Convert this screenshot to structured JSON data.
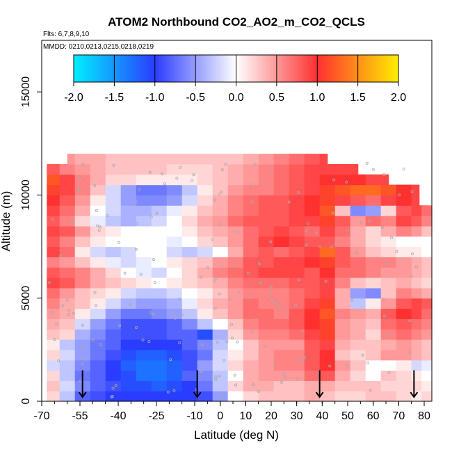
{
  "chart_data": {
    "type": "heatmap",
    "title": "ATOM2 Northbound CO2_AO2_m_CO2_QCLS",
    "flights_label": "Flts: 6,7,8,9,10",
    "dates_label": "MMDD: 0210,0213,0215,0218,0219",
    "xlabel": "Latitude (deg N)",
    "ylabel": "Altitude (m)",
    "xlim": [
      -70,
      83
    ],
    "ylim": [
      0,
      17500
    ],
    "x_ticks": [
      -70,
      -55,
      -40,
      -25,
      -10,
      0,
      10,
      20,
      30,
      40,
      50,
      60,
      70,
      80
    ],
    "y_ticks": [
      0,
      5000,
      10000,
      15000
    ],
    "colorbar": {
      "ticks": [
        "-2.0",
        "-1.5",
        "-1.0",
        "-0.5",
        "0.0",
        "0.5",
        "1.0",
        "1.5",
        "2.0"
      ],
      "range": [
        -2.0,
        2.0
      ],
      "colors": {
        "low": "#00f0ff",
        "mid_low": "#2a3cff",
        "zero": "#ffffff",
        "mid_high": "#ff3030",
        "high": "#ffee00"
      }
    },
    "arrows_latitude": [
      -54,
      -9,
      39,
      76
    ],
    "altitude_levels": [
      250,
      750,
      1250,
      1750,
      2250,
      2750,
      3250,
      3750,
      4250,
      4750,
      5250,
      5750,
      6250,
      6750,
      7250,
      7750,
      8250,
      8750,
      9250,
      9750,
      10250,
      10750,
      11250,
      11750
    ],
    "latitude_bins": [
      -66,
      -60,
      -54,
      -48,
      -42,
      -36,
      -30,
      -24,
      -18,
      -12,
      -6,
      0,
      6,
      12,
      18,
      24,
      30,
      36,
      42,
      48,
      54,
      60,
      66,
      72,
      78,
      82
    ],
    "values": [
      [
        0.2,
        -0.3,
        -0.8,
        -0.9,
        -1.0,
        -1.0,
        -1.0,
        -1.0,
        -1.0,
        -1.0,
        -0.9,
        -0.5,
        0.0,
        0.2,
        0.3,
        0.3,
        0.3,
        0.4,
        0.3,
        0.2,
        0.2,
        0.3,
        0.3,
        0.2,
        0.1,
        0.2
      ],
      [
        0.3,
        -0.2,
        -0.6,
        -0.8,
        -0.9,
        -1.1,
        -1.1,
        -1.2,
        -1.1,
        -1.0,
        -0.7,
        -0.3,
        0.2,
        0.4,
        0.4,
        0.3,
        0.3,
        0.4,
        0.4,
        0.3,
        0.3,
        0.3,
        0.2,
        0.2,
        0.2,
        0.1
      ],
      [
        0.2,
        -0.3,
        -0.7,
        -0.8,
        -1.0,
        -1.1,
        -1.3,
        -1.3,
        -1.2,
        -0.8,
        -0.6,
        -0.3,
        0.0,
        0.4,
        0.5,
        0.5,
        0.5,
        0.7,
        0.8,
        0.4,
        0.2,
        0.0,
        0.3,
        0.2,
        0.1,
        0.0
      ],
      [
        -0.2,
        -0.3,
        -0.6,
        -0.8,
        -1.0,
        -1.2,
        -1.3,
        -1.3,
        -1.2,
        -0.9,
        -0.5,
        -0.2,
        0.2,
        0.4,
        0.5,
        0.6,
        0.6,
        0.8,
        1.0,
        0.5,
        0.3,
        0.0,
        0.0,
        0.1,
        -0.2,
        -0.1
      ],
      [
        0.2,
        -0.2,
        -0.5,
        -0.7,
        -0.9,
        -1.1,
        -1.2,
        -1.2,
        -1.1,
        -0.9,
        -0.7,
        -0.2,
        0.1,
        0.3,
        0.5,
        0.6,
        0.6,
        0.8,
        1.0,
        0.3,
        0.2,
        0.3,
        0.5,
        0.5,
        0.4,
        0.3
      ],
      [
        0.1,
        -0.3,
        -0.5,
        -0.7,
        -0.8,
        -1.0,
        -1.0,
        -1.0,
        -1.0,
        -0.8,
        -0.6,
        -0.3,
        0.0,
        0.3,
        0.5,
        0.5,
        0.5,
        0.8,
        0.9,
        0.4,
        0.3,
        0.3,
        0.4,
        0.5,
        0.4,
        0.3
      ],
      [
        0.3,
        0.2,
        -0.4,
        -0.6,
        -0.8,
        -0.9,
        -0.9,
        -0.9,
        -0.8,
        -0.8,
        -1.1,
        -0.4,
        0.2,
        0.5,
        0.6,
        0.6,
        0.7,
        0.9,
        1.1,
        0.5,
        0.4,
        0.2,
        0.6,
        0.7,
        0.6,
        0.5
      ],
      [
        0.4,
        0.3,
        -0.2,
        -0.5,
        -0.7,
        -0.9,
        -0.9,
        -0.9,
        -0.8,
        -0.6,
        -0.3,
        0.0,
        0.3,
        0.6,
        0.7,
        0.7,
        0.8,
        1.0,
        1.1,
        0.5,
        0.4,
        0.3,
        0.7,
        0.8,
        0.7,
        0.6
      ],
      [
        0.5,
        0.4,
        0.1,
        -0.2,
        -0.5,
        -0.7,
        -0.7,
        -0.6,
        -0.5,
        -0.3,
        0.1,
        0.3,
        0.5,
        0.7,
        0.7,
        0.6,
        0.8,
        1.0,
        1.2,
        0.6,
        0.5,
        0.4,
        0.8,
        1.0,
        0.9,
        0.7
      ],
      [
        0.6,
        0.4,
        0.3,
        0.1,
        -0.2,
        -0.4,
        -0.5,
        -0.5,
        -0.4,
        -0.1,
        0.2,
        0.4,
        0.5,
        0.7,
        0.6,
        0.6,
        0.7,
        0.9,
        1.1,
        0.4,
        -0.3,
        0.1,
        0.5,
        0.8,
        0.9,
        0.8
      ],
      [
        0.7,
        0.5,
        0.3,
        0.2,
        0.1,
        -0.2,
        -0.3,
        -0.3,
        -0.2,
        0.0,
        0.1,
        0.3,
        0.5,
        0.6,
        0.6,
        0.6,
        0.7,
        0.8,
        0.9,
        0.4,
        -0.5,
        -0.6,
        0.3,
        0.6,
        0.5,
        0.4
      ],
      [
        0.9,
        0.8,
        0.6,
        0.4,
        0.3,
        0.2,
        0.1,
        0.0,
        0.1,
        0.2,
        0.3,
        0.4,
        0.6,
        0.7,
        0.7,
        0.7,
        0.8,
        0.8,
        0.9,
        0.6,
        0.3,
        0.2,
        0.3,
        0.4,
        0.3,
        0.2
      ],
      [
        0.8,
        0.7,
        0.6,
        0.4,
        0.2,
        0.0,
        -0.1,
        -0.2,
        0.0,
        0.2,
        0.4,
        0.6,
        0.7,
        0.8,
        0.9,
        0.9,
        0.9,
        0.8,
        1.0,
        0.7,
        0.7,
        0.6,
        0.5,
        0.5,
        0.4,
        0.3
      ],
      [
        0.6,
        0.5,
        0.3,
        0.1,
        -0.1,
        -0.2,
        -0.1,
        0.0,
        0.1,
        0.2,
        0.3,
        0.5,
        0.6,
        0.8,
        0.8,
        0.9,
        0.9,
        1.0,
        1.1,
        0.8,
        0.7,
        0.6,
        0.6,
        0.5,
        0.4,
        0.3
      ],
      [
        0.9,
        0.7,
        0.1,
        -0.2,
        -0.3,
        -0.2,
        0.0,
        0.0,
        -0.2,
        -0.3,
        -0.2,
        0.0,
        0.4,
        0.7,
        0.8,
        0.7,
        0.8,
        0.9,
        1.3,
        0.8,
        0.5,
        0.3,
        0.2,
        0.1,
        0.1,
        0.0
      ],
      [
        0.8,
        0.6,
        0.3,
        0.1,
        0.0,
        0.0,
        0.0,
        0.0,
        -0.1,
        0.0,
        0.2,
        0.3,
        0.5,
        0.7,
        0.9,
        1.0,
        0.9,
        0.8,
        0.8,
        0.6,
        0.4,
        0.2,
        0.1,
        0.0,
        0.0,
        0.0
      ],
      [
        0.9,
        0.8,
        0.5,
        0.2,
        0.1,
        0.0,
        0.0,
        0.0,
        0.0,
        0.1,
        0.3,
        0.4,
        0.5,
        0.7,
        0.8,
        0.9,
        0.8,
        0.7,
        0.9,
        0.7,
        0.4,
        0.2,
        0.4,
        0.6,
        0.5,
        0.3
      ],
      [
        0.8,
        0.6,
        0.2,
        -0.1,
        -0.3,
        -0.4,
        -0.3,
        -0.2,
        0.0,
        0.2,
        0.4,
        0.5,
        0.7,
        0.8,
        0.8,
        0.8,
        0.9,
        0.9,
        1.1,
        0.8,
        0.5,
        0.7,
        0.6,
        0.9,
        0.8,
        0.6
      ],
      [
        0.9,
        0.7,
        0.4,
        0.0,
        -0.2,
        -0.4,
        -0.4,
        -0.3,
        -0.1,
        0.1,
        0.3,
        0.4,
        0.6,
        0.7,
        0.8,
        0.8,
        0.9,
        1.0,
        1.2,
        0.3,
        -0.6,
        -0.5,
        0.2,
        0.8,
        0.9,
        0.7
      ],
      [
        1.0,
        0.8,
        0.5,
        0.1,
        -0.2,
        -0.5,
        -0.6,
        -0.6,
        -0.5,
        -0.2,
        0.2,
        0.4,
        0.6,
        0.7,
        0.8,
        0.8,
        0.9,
        1.0,
        1.1,
        0.9,
        0.8,
        0.7,
        0.9,
        1.0,
        0.9,
        0.8
      ],
      [
        1.1,
        0.9,
        0.6,
        0.3,
        -0.2,
        -0.5,
        -0.7,
        -0.7,
        -0.6,
        -0.3,
        0.1,
        0.3,
        0.5,
        0.6,
        0.6,
        0.7,
        0.8,
        0.9,
        1.1,
        1.2,
        1.3,
        1.3,
        1.2,
        1.0,
        0.9,
        0.9
      ],
      [
        1.2,
        0.9,
        0.6,
        0.4,
        0.2,
        0.2,
        0.1,
        0.1,
        0.1,
        0.1,
        0.2,
        0.3,
        0.4,
        0.5,
        0.6,
        0.7,
        0.8,
        0.9,
        1.0,
        1.0,
        1.0,
        0.9,
        0.9,
        0.9,
        0.8,
        0.8
      ],
      [
        0.8,
        0.6,
        0.5,
        0.4,
        0.3,
        0.3,
        0.3,
        0.3,
        0.2,
        0.2,
        0.2,
        0.3,
        0.4,
        0.5,
        0.6,
        0.7,
        0.8,
        0.9,
        0.9,
        0.9,
        0.9,
        0.9,
        0.8,
        0.8,
        0.8,
        0.8
      ],
      [
        0.5,
        0.5,
        0.4,
        0.4,
        0.3,
        0.3,
        0.3,
        0.3,
        0.3,
        0.3,
        0.3,
        0.3,
        0.3,
        0.4,
        0.5,
        0.6,
        0.7,
        0.8,
        0.9,
        0.9,
        0.9,
        0.9,
        0.9,
        0.9,
        0.9,
        0.9
      ]
    ],
    "grid": false,
    "legend": "colorbar top"
  }
}
